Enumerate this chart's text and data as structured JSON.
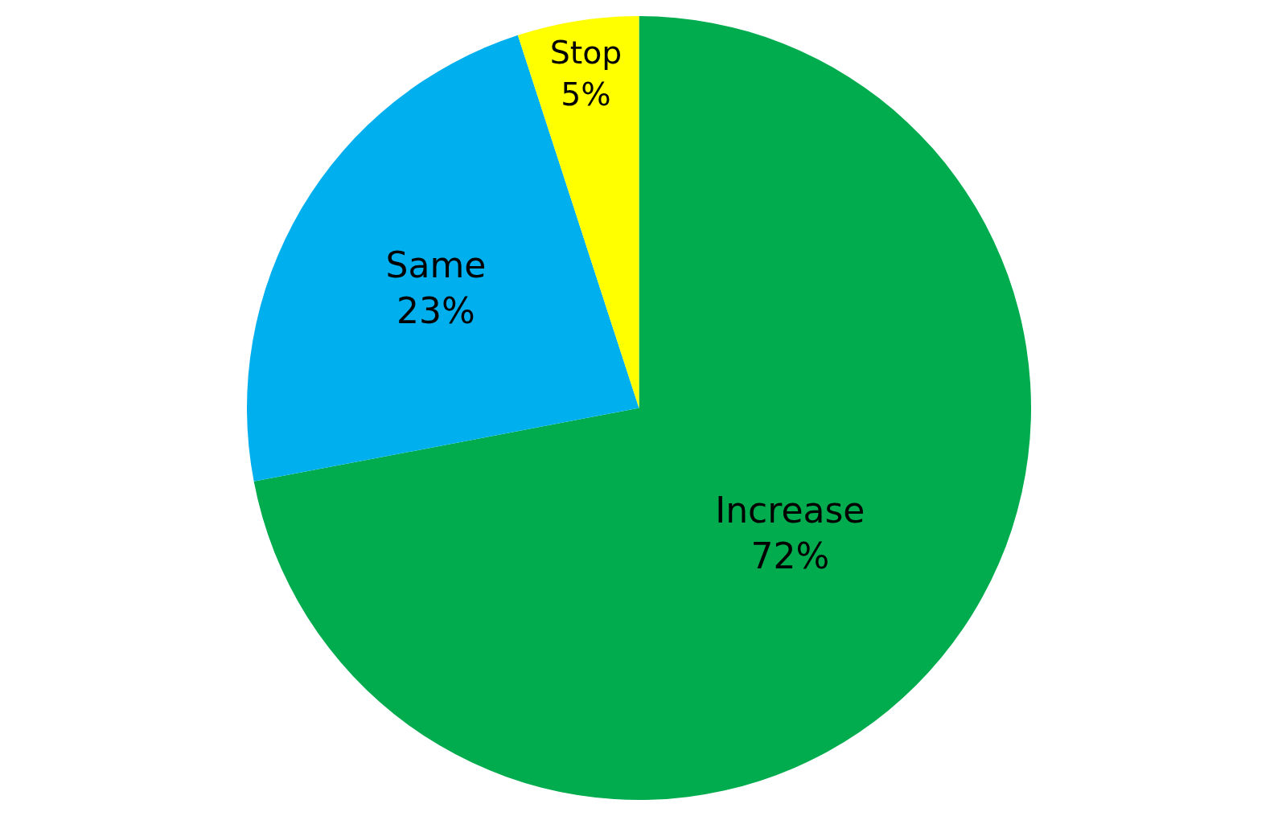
{
  "chart_data": {
    "type": "pie",
    "categories": [
      "Increase",
      "Same",
      "Stop"
    ],
    "values": [
      72,
      23,
      5
    ],
    "value_labels": [
      "72%",
      "23%",
      "5%"
    ],
    "colors": [
      "#00ac4e",
      "#00b0ee",
      "#ffff00"
    ],
    "legend": false
  }
}
